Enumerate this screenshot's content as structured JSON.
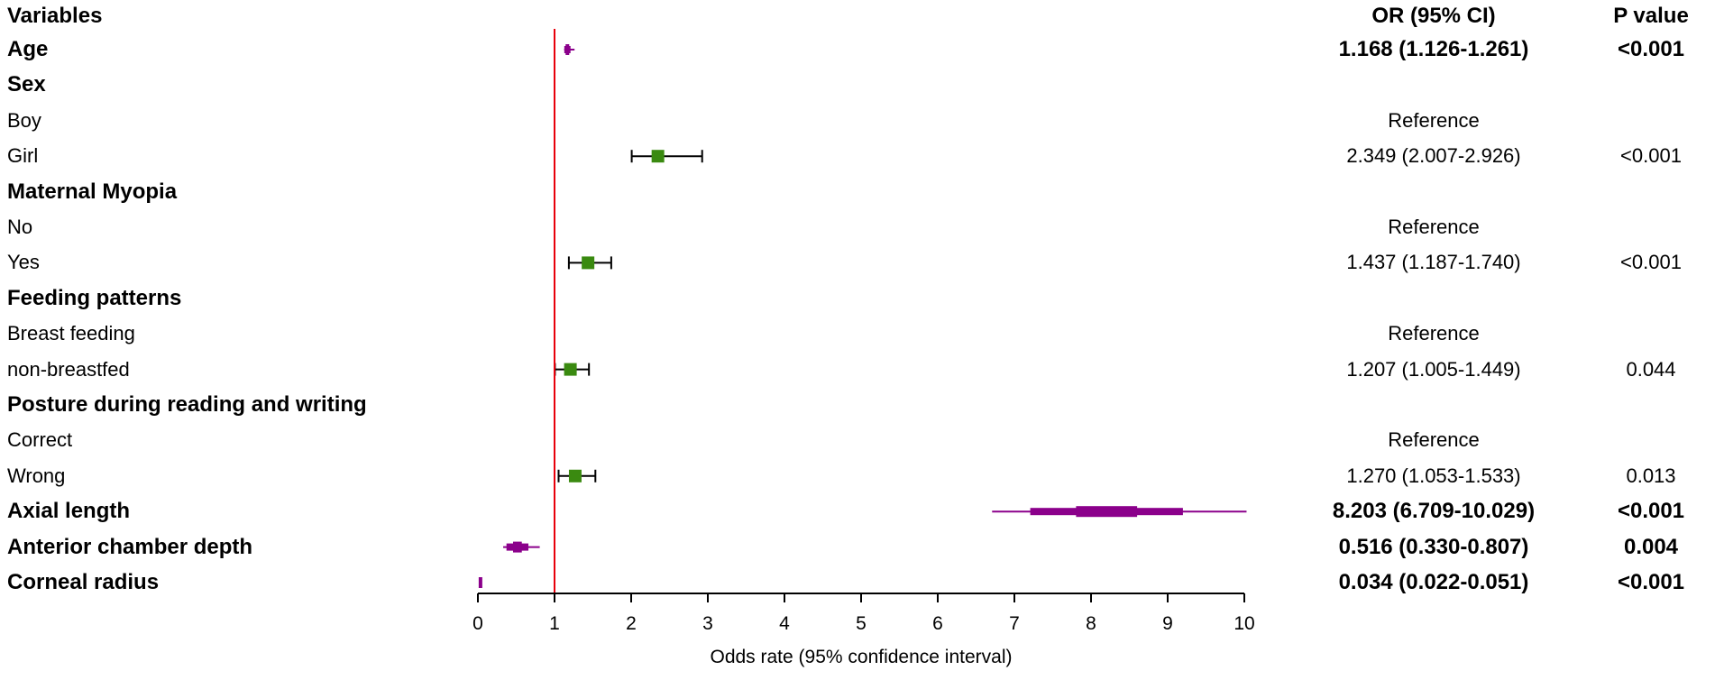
{
  "header": {
    "variables": "Variables",
    "or_ci": "OR (95% CI)",
    "p_value": "P value"
  },
  "chart_data": {
    "type": "forest",
    "xlabel": "Odds rate (95% confidence interval)",
    "xlim": [
      0,
      10
    ],
    "xticks": [
      "0",
      "1",
      "2",
      "3",
      "4",
      "5",
      "6",
      "7",
      "8",
      "9",
      "10"
    ],
    "reference_line": 1,
    "colors": {
      "reference_line": "#e8000b",
      "continuous": "#8b008b",
      "categorical": "#3a8a10",
      "whisker": "#000000"
    },
    "rows": [
      {
        "label": "Age",
        "header": true,
        "or": 1.168,
        "lo": 1.126,
        "hi": 1.261,
        "or_text": "1.168 (1.126-1.261)",
        "p": "<0.001",
        "style": "continuous"
      },
      {
        "label": "Sex",
        "header": true
      },
      {
        "label": "Boy",
        "or_text": "Reference"
      },
      {
        "label": "Girl",
        "or": 2.349,
        "lo": 2.007,
        "hi": 2.926,
        "or_text": "2.349 (2.007-2.926)",
        "p": "<0.001",
        "style": "categorical"
      },
      {
        "label": "Maternal Myopia",
        "header": true
      },
      {
        "label": "No",
        "or_text": "Reference"
      },
      {
        "label": "Yes",
        "or": 1.437,
        "lo": 1.187,
        "hi": 1.74,
        "or_text": "1.437 (1.187-1.740)",
        "p": "<0.001",
        "style": "categorical"
      },
      {
        "label": "Feeding patterns",
        "header": true
      },
      {
        "label": "Breast feeding",
        "or_text": "Reference"
      },
      {
        "label": "non-breastfed",
        "or": 1.207,
        "lo": 1.005,
        "hi": 1.449,
        "or_text": "1.207 (1.005-1.449)",
        "p": "0.044",
        "style": "categorical"
      },
      {
        "label": "Posture during reading and writing",
        "header": true
      },
      {
        "label": "Correct",
        "or_text": "Reference"
      },
      {
        "label": "Wrong",
        "or": 1.27,
        "lo": 1.053,
        "hi": 1.533,
        "or_text": "1.270 (1.053-1.533)",
        "p": "0.013",
        "style": "categorical"
      },
      {
        "label": "Axial length",
        "header": true,
        "or": 8.203,
        "lo": 6.709,
        "hi": 10.029,
        "or_text": "8.203 (6.709-10.029)",
        "p": "<0.001",
        "style": "continuous"
      },
      {
        "label": "Anterior chamber depth",
        "header": true,
        "or": 0.516,
        "lo": 0.33,
        "hi": 0.807,
        "or_text": "0.516 (0.330-0.807)",
        "p": "0.004",
        "style": "continuous"
      },
      {
        "label": "Corneal radius",
        "header": true,
        "or": 0.034,
        "lo": 0.022,
        "hi": 0.051,
        "or_text": "0.034 (0.022-0.051)",
        "p": "<0.001",
        "style": "continuous"
      }
    ]
  }
}
